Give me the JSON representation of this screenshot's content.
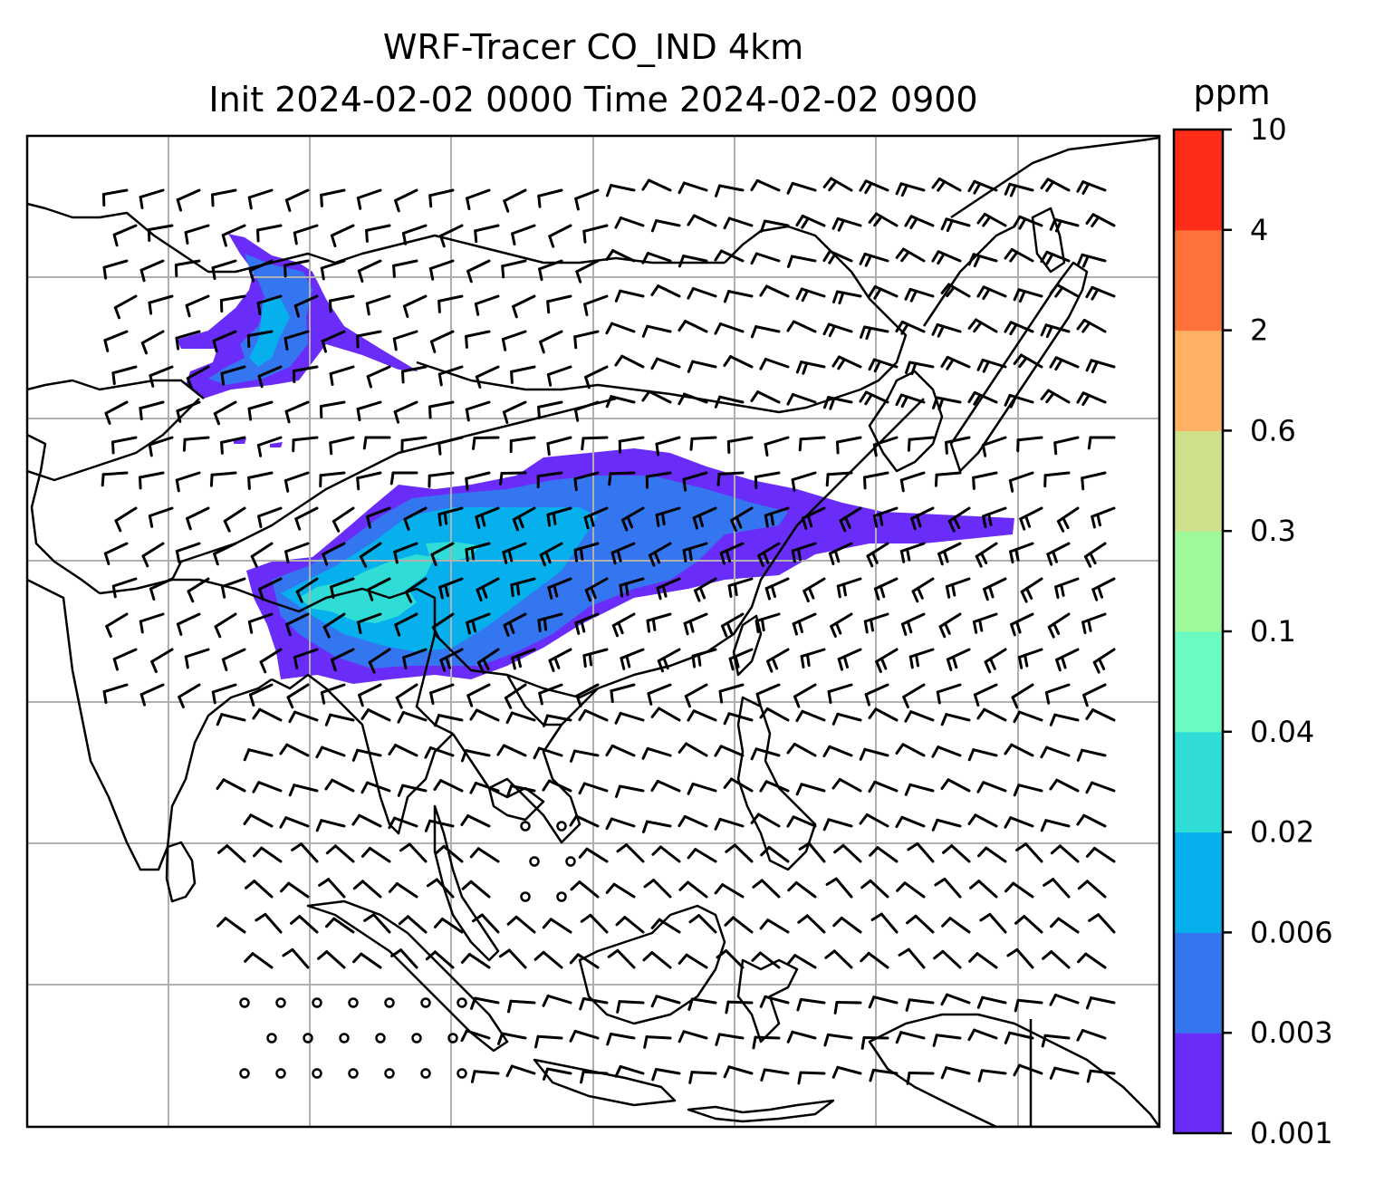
{
  "title": {
    "line1": "WRF-Tracer CO_IND 4km",
    "line2": "Init 2024-02-02 0000 Time 2024-02-02 0900"
  },
  "colorbar": {
    "unit": "ppm",
    "levels": [
      "0.001",
      "0.003",
      "0.006",
      "0.02",
      "0.04",
      "0.1",
      "0.3",
      "0.6",
      "2",
      "4",
      "10"
    ],
    "colors": [
      "#6a2cf8",
      "#3476f0",
      "#05b0ec",
      "#2fddd6",
      "#6bfbc1",
      "#9ef99a",
      "#cfe08a",
      "#feb063",
      "#fe7239",
      "#fe2c18"
    ]
  },
  "map": {
    "features": [
      "coastlines",
      "country-borders",
      "gridlines",
      "wind-barbs",
      "tracer-plume"
    ],
    "gridline_color": "#b0b0b0",
    "plume_colors": {
      "low": "#6a2cf8",
      "mid": "#3476f0",
      "high": "#05b0ec",
      "peak": "#2fddd6"
    }
  }
}
